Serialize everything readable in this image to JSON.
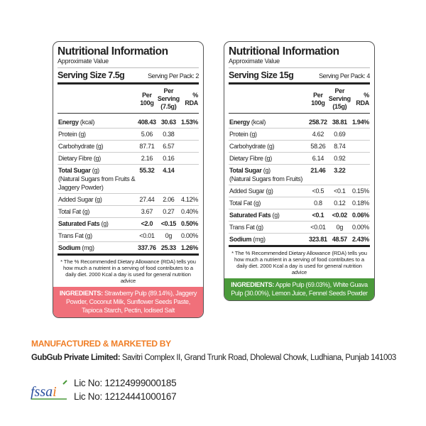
{
  "labels": [
    {
      "title": "Nutritional Information",
      "subtitle": "Approximate Value",
      "serving_size": "Serving Size 7.5g",
      "serving_per_pack": "Serving Per Pack: 2",
      "columns": [
        "Per 100g",
        "Per Serving (7.5g)",
        "% RDA"
      ],
      "rows": [
        {
          "name": "Energy",
          "unit": "(kcal)",
          "per100": "408.43",
          "serving": "30.63",
          "rda": "1.53%",
          "bold": true
        },
        {
          "name": "Protein (g)",
          "unit": "",
          "per100": "5.06",
          "serving": "0.38",
          "rda": ""
        },
        {
          "name": "Carbohydrate (g)",
          "unit": "",
          "per100": "87.71",
          "serving": "6.57",
          "rda": ""
        },
        {
          "name": "Dietary Fibre (g)",
          "unit": "",
          "per100": "2.16",
          "serving": "0.16",
          "rda": ""
        },
        {
          "name": "Total Sugar",
          "unit": "(g)",
          "note": "(Natural Sugars from Fruits & Jaggery Powder)",
          "per100": "55.32",
          "serving": "4.14",
          "rda": "",
          "bold": true
        },
        {
          "name": "Added Sugar (g)",
          "unit": "",
          "per100": "27.44",
          "serving": "2.06",
          "rda": "4.12%"
        },
        {
          "name": "Total Fat (g)",
          "unit": "",
          "per100": "3.67",
          "serving": "0.27",
          "rda": "0.40%"
        },
        {
          "name": "Saturated Fats",
          "unit": "(g)",
          "per100": "<2.0",
          "serving": "<0.15",
          "rda": "0.50%",
          "bold": true
        },
        {
          "name": "Trans Fat (g)",
          "unit": "",
          "per100": "<0.01",
          "serving": "0g",
          "rda": "0.00%"
        },
        {
          "name": "Sodium",
          "unit": "(mg)",
          "per100": "337.76",
          "serving": "25.33",
          "rda": "1.26%",
          "bold": true
        }
      ],
      "footnote": "* The %  Recommended Dietary Allowance (RDA) tells you how much a nutrient in a serving of food contributes to a daily diet. 2000 Kcal a day is used for general nutrition advice",
      "ingredients_label": "INGREDIENTS:",
      "ingredients": "Strawberry Pulp (89.14%), Jaggery Powder, Coconut Milk, Sunflower Seeds Paste, Tapioca Starch, Pectin, Iodised Salt",
      "ingredients_color": "#f0707a"
    },
    {
      "title": "Nutritional Information",
      "subtitle": "Approximate Value",
      "serving_size": "Serving Size 15g",
      "serving_per_pack": "Serving Per Pack: 4",
      "columns": [
        "Per 100g",
        "Per Serving (15g)",
        "% RDA"
      ],
      "rows": [
        {
          "name": "Energy",
          "unit": "(kcal)",
          "per100": "258.72",
          "serving": "38.81",
          "rda": "1.94%",
          "bold": true
        },
        {
          "name": "Protein (g)",
          "unit": "",
          "per100": "4.62",
          "serving": "0.69",
          "rda": ""
        },
        {
          "name": "Carbohydrate (g)",
          "unit": "",
          "per100": "58.26",
          "serving": "8.74",
          "rda": ""
        },
        {
          "name": "Dietary Fibre (g)",
          "unit": "",
          "per100": "6.14",
          "serving": "0.92",
          "rda": ""
        },
        {
          "name": "Total Sugar",
          "unit": "(g)",
          "note": "(Natural Sugars from Fruits)",
          "per100": "21.46",
          "serving": "3.22",
          "rda": "",
          "bold": true
        },
        {
          "name": "Added Sugar (g)",
          "unit": "",
          "per100": "<0.5",
          "serving": "<0.1",
          "rda": "0.15%"
        },
        {
          "name": "Total Fat (g)",
          "unit": "",
          "per100": "0.8",
          "serving": "0.12",
          "rda": "0.18%"
        },
        {
          "name": "Saturated Fats",
          "unit": "(g)",
          "per100": "<0.1",
          "serving": "<0.02",
          "rda": "0.06%",
          "bold": true
        },
        {
          "name": "Trans Fat (g)",
          "unit": "",
          "per100": "<0.01",
          "serving": "0g",
          "rda": "0.00%"
        },
        {
          "name": "Sodium",
          "unit": "(mg)",
          "per100": "323.81",
          "serving": "48.57",
          "rda": "2.43%",
          "bold": true
        }
      ],
      "footnote": "* The %  Recommended Dietary Allowance (RDA) tells you how much a nutrient in a serving of food contributes to a daily diet. 2000 Kcal a day is used for general nutrition advice",
      "ingredients_label": "INGREDIENTS:",
      "ingredients": "Apple Pulp (69.03%), White Guava Pulp (30.00%), Lemon Juice, Fennel Seeds Powder",
      "ingredients_color": "#4a9a3a"
    }
  ],
  "manufacturer": {
    "heading": "MANUFACTURED & MARKETED BY",
    "company": "GubGub Private Limited:",
    "address": "Savitri Complex II, Grand Trunk Road, Dholewal Chowk, Ludhiana, Punjab 141003",
    "heading_color": "#f07e26"
  },
  "fssai": {
    "logo_text": "fssai",
    "licenses": [
      "Lic No: 12124999000185",
      "Lic No: 12124441000167"
    ]
  }
}
